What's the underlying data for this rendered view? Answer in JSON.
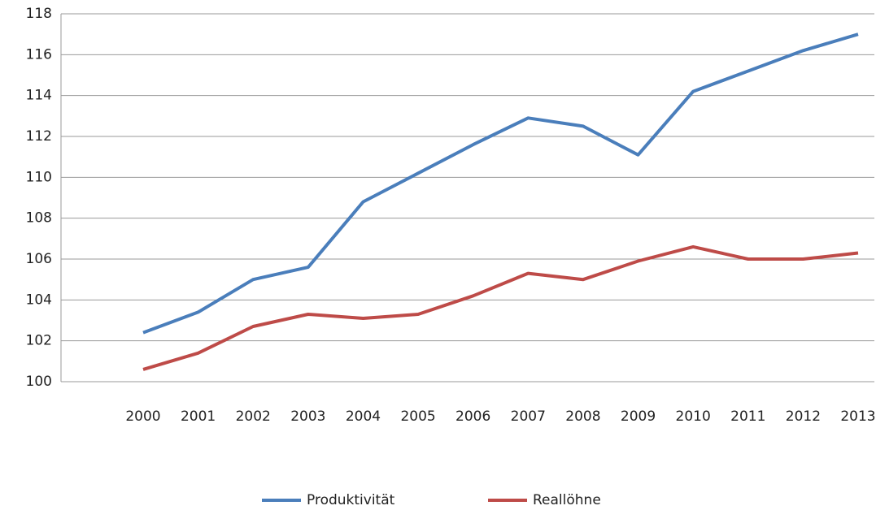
{
  "chart_data": {
    "type": "line",
    "categories": [
      "2000",
      "2001",
      "2002",
      "2003",
      "2004",
      "2005",
      "2006",
      "2007",
      "2008",
      "2009",
      "2010",
      "2011",
      "2012",
      "2013"
    ],
    "series": [
      {
        "name": "Produktivität",
        "color": "#4a7ebb",
        "values": [
          102.4,
          103.4,
          105.0,
          105.6,
          108.8,
          110.2,
          111.6,
          112.9,
          112.5,
          111.1,
          114.2,
          115.2,
          116.2,
          117.0
        ]
      },
      {
        "name": "Reallöhne",
        "color": "#be4b48",
        "values": [
          100.6,
          101.4,
          102.7,
          103.3,
          103.1,
          103.3,
          104.2,
          105.3,
          105.0,
          105.9,
          106.6,
          106.0,
          106.0,
          106.3
        ]
      }
    ],
    "ylim": [
      100,
      118
    ],
    "yticks": [
      100,
      102,
      104,
      106,
      108,
      110,
      112,
      114,
      116,
      118
    ],
    "grid": true,
    "legend": "bottom"
  }
}
